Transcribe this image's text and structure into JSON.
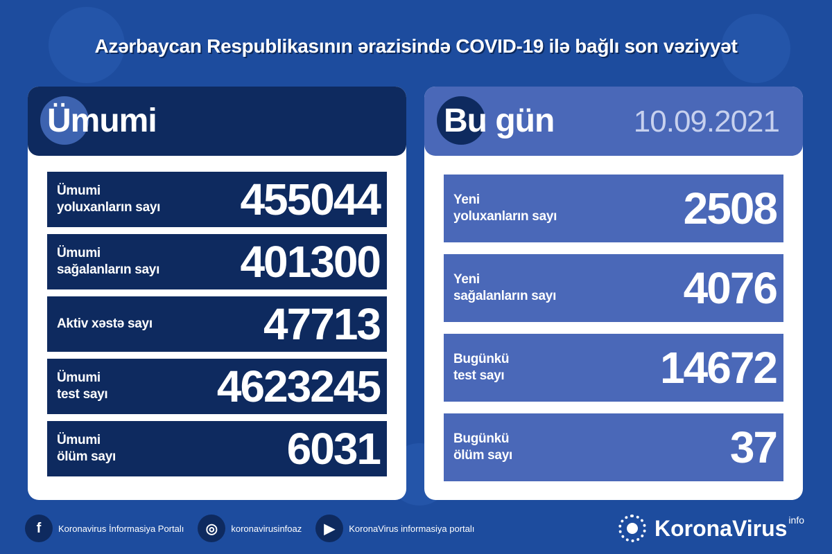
{
  "title": "Azərbaycan Respublikasının ərazisində COVID-19 ilə bağlı son vəziyyət",
  "colors": {
    "background": "#1d4c9e",
    "navy": "#0e2a5f",
    "light_blue": "#4a68b8",
    "date": "#c7d1ee"
  },
  "total": {
    "heading": "Ümumi",
    "rows": [
      {
        "label1": "Ümumi",
        "label2": "yoluxanların sayı",
        "value": "455044"
      },
      {
        "label1": "Ümumi",
        "label2": "sağalanların sayı",
        "value": "401300"
      },
      {
        "label1": "Aktiv xəstə sayı",
        "label2": "",
        "value": "47713"
      },
      {
        "label1": "Ümumi",
        "label2": "test sayı",
        "value": "4623245"
      },
      {
        "label1": "Ümumi",
        "label2": "ölüm sayı",
        "value": "6031"
      }
    ]
  },
  "today": {
    "heading": "Bu gün",
    "date": "10.09.2021",
    "rows": [
      {
        "label1": "Yeni",
        "label2": "yoluxanların sayı",
        "value": "2508"
      },
      {
        "label1": "Yeni",
        "label2": "sağalanların sayı",
        "value": "4076"
      },
      {
        "label1": "Bugünkü",
        "label2": "test sayı",
        "value": "14672"
      },
      {
        "label1": "Bugünkü",
        "label2": "ölüm sayı",
        "value": "37"
      }
    ]
  },
  "footer": {
    "social": [
      {
        "icon": "facebook-icon",
        "glyph": "f",
        "label": "Koronavirus İnformasiya Portalı"
      },
      {
        "icon": "instagram-icon",
        "glyph": "◎",
        "label": "koronavirusinfoaz"
      },
      {
        "icon": "youtube-icon",
        "glyph": "▶",
        "label": "KoronaVirus informasiya portalı"
      }
    ],
    "brand": "KoronaVirus",
    "brand_sup": "info"
  }
}
